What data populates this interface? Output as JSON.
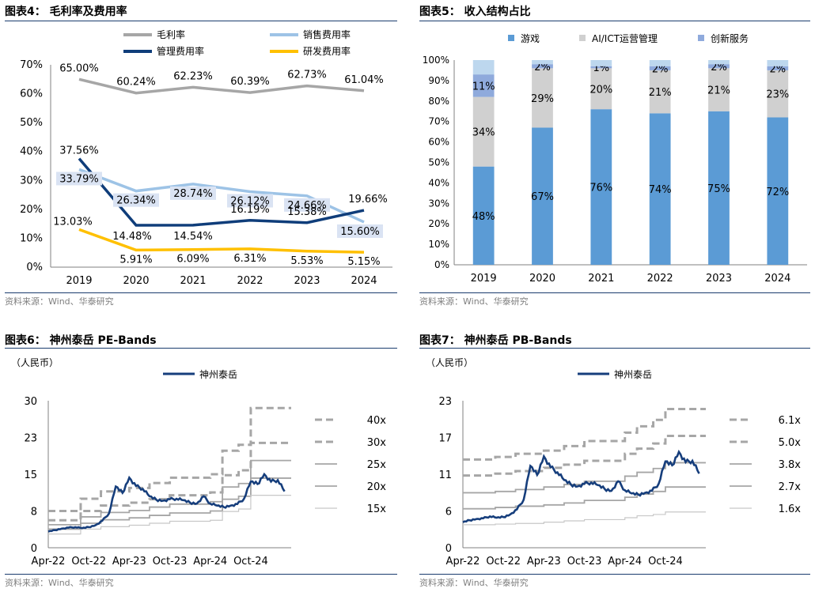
{
  "panels": {
    "p4": {
      "title": "图表4：  毛利率及费用率",
      "source": "资料来源：Wind、华泰研究"
    },
    "p5": {
      "title": "图表5：  收入结构占比",
      "source": "资料来源：Wind、华泰研究"
    },
    "p6": {
      "title": "图表6：  神州泰岳 PE-Bands",
      "source": "资料来源：Wind、华泰研究",
      "unit": "（人民币）"
    },
    "p7": {
      "title": "图表7：  神州泰岳 PB-Bands",
      "source": "资料来源：Wind、华泰研究",
      "unit": "（人民币）"
    }
  },
  "chart_data": [
    {
      "id": "margins",
      "type": "line",
      "categories": [
        "2019",
        "2020",
        "2021",
        "2022",
        "2023",
        "2024"
      ],
      "ylim": [
        0,
        70
      ],
      "yticks": [
        "0%",
        "10%",
        "20%",
        "30%",
        "40%",
        "50%",
        "60%",
        "70%"
      ],
      "legend_position": "top",
      "series": [
        {
          "name": "毛利率",
          "color": "#a6a6a6",
          "values": [
            65.0,
            60.24,
            62.23,
            60.39,
            62.73,
            61.04
          ],
          "labels": [
            "65.00%",
            "60.24%",
            "62.23%",
            "60.39%",
            "62.73%",
            "61.04%"
          ]
        },
        {
          "name": "销售费用率",
          "color": "#9dc3e6",
          "values": [
            33.79,
            26.34,
            28.74,
            26.12,
            24.66,
            15.6
          ],
          "labels": [
            "33.79%",
            "26.34%",
            "28.74%",
            "26.12%",
            "24.66%",
            "15.60%"
          ]
        },
        {
          "name": "管理费用率",
          "color": "#0f3d7a",
          "values": [
            37.56,
            14.48,
            14.54,
            16.19,
            15.38,
            19.66
          ],
          "labels": [
            "37.56%",
            "14.48%",
            "14.54%",
            "16.19%",
            "15.38%",
            "19.66%"
          ]
        },
        {
          "name": "研发费用率",
          "color": "#ffc000",
          "values": [
            13.03,
            5.91,
            6.09,
            6.31,
            5.53,
            5.15
          ],
          "labels": [
            "13.03%",
            "5.91%",
            "6.09%",
            "6.31%",
            "5.53%",
            "5.15%"
          ]
        }
      ]
    },
    {
      "id": "revenue_mix",
      "type": "bar",
      "stacked": true,
      "categories": [
        "2019",
        "2020",
        "2021",
        "2022",
        "2023",
        "2024"
      ],
      "ylim": [
        0,
        100
      ],
      "yticks": [
        "0%",
        "10%",
        "20%",
        "30%",
        "40%",
        "50%",
        "60%",
        "70%",
        "80%",
        "90%",
        "100%"
      ],
      "legend_position": "top",
      "series": [
        {
          "name": "游戏",
          "color": "#5b9bd5",
          "values": [
            48,
            67,
            76,
            74,
            75,
            72
          ],
          "labels": [
            "48%",
            "67%",
            "76%",
            "74%",
            "75%",
            "72%"
          ]
        },
        {
          "name": "AI/ICT运营管理",
          "color": "#d0d0d0",
          "values": [
            34,
            29,
            20,
            21,
            21,
            23
          ],
          "labels": [
            "34%",
            "29%",
            "20%",
            "21%",
            "21%",
            "23%"
          ]
        },
        {
          "name": "创新服务",
          "color": "#8faadc",
          "values": [
            11,
            2,
            1,
            2,
            2,
            2
          ],
          "labels": [
            "11%",
            "2%",
            "1%",
            "2%",
            "2%",
            "2%"
          ]
        },
        {
          "name": "",
          "color": "#bdd7ee",
          "values": [
            7,
            2,
            3,
            3,
            2,
            3
          ],
          "labels": [
            "",
            "",
            "",
            "",
            "",
            ""
          ]
        }
      ]
    },
    {
      "id": "pe_bands",
      "type": "line",
      "xlim": [
        "2022-04-01",
        "2025-03-31"
      ],
      "xticks": [
        {
          "label": "Apr-22",
          "date": "2022-04-01"
        },
        {
          "label": "Oct-22",
          "date": "2022-10-01"
        },
        {
          "label": "Apr-23",
          "date": "2023-04-01"
        },
        {
          "label": "Oct-23",
          "date": "2023-10-01"
        },
        {
          "label": "Apr-24",
          "date": "2024-04-01"
        },
        {
          "label": "Oct-24",
          "date": "2024-10-01"
        }
      ],
      "ylim": [
        0,
        30
      ],
      "yticks": [
        "0",
        "8",
        "15",
        "23",
        "30"
      ],
      "ytick_values": [
        0,
        7.5,
        15,
        22.5,
        30
      ],
      "legend_position": "top-left",
      "price": {
        "name": "神州泰岳",
        "color": "#163e7c",
        "points": [
          [
            "2022-04-01",
            3.3
          ],
          [
            "2022-05-01",
            3.6
          ],
          [
            "2022-06-01",
            3.9
          ],
          [
            "2022-07-01",
            4.1
          ],
          [
            "2022-08-01",
            4.2
          ],
          [
            "2022-09-01",
            4.0
          ],
          [
            "2022-10-01",
            4.2
          ],
          [
            "2022-11-01",
            4.6
          ],
          [
            "2022-12-01",
            5.5
          ],
          [
            "2023-01-01",
            7.0
          ],
          [
            "2023-02-01",
            12.5
          ],
          [
            "2023-03-01",
            11.2
          ],
          [
            "2023-04-01",
            14.3
          ],
          [
            "2023-05-01",
            12.6
          ],
          [
            "2023-06-01",
            12.0
          ],
          [
            "2023-07-01",
            10.5
          ],
          [
            "2023-08-01",
            9.8
          ],
          [
            "2023-09-01",
            9.6
          ],
          [
            "2023-10-01",
            9.9
          ],
          [
            "2023-11-01",
            10.0
          ],
          [
            "2023-12-01",
            9.7
          ],
          [
            "2024-01-01",
            9.2
          ],
          [
            "2024-02-01",
            9.0
          ],
          [
            "2024-03-01",
            10.5
          ],
          [
            "2024-04-01",
            9.0
          ],
          [
            "2024-05-01",
            8.6
          ],
          [
            "2024-06-01",
            8.3
          ],
          [
            "2024-07-01",
            8.6
          ],
          [
            "2024-08-01",
            8.9
          ],
          [
            "2024-09-01",
            10.0
          ],
          [
            "2024-10-01",
            13.5
          ],
          [
            "2024-11-01",
            13.0
          ],
          [
            "2024-12-01",
            15.0
          ],
          [
            "2025-01-01",
            13.5
          ],
          [
            "2025-02-01",
            13.8
          ],
          [
            "2025-03-01",
            11.5
          ]
        ]
      },
      "bands": [
        {
          "name": "40x",
          "style": "dashed",
          "color": "#a6a6a6",
          "levels": [
            [
              2022.25,
              7.5
            ],
            [
              2022.65,
              10.0
            ],
            [
              2022.9,
              11.5
            ],
            [
              2023.25,
              12.2
            ],
            [
              2023.5,
              13.2
            ],
            [
              2023.75,
              14.3
            ],
            [
              2024.25,
              15.0
            ],
            [
              2024.4,
              19.8
            ],
            [
              2024.6,
              21.0
            ],
            [
              2024.75,
              28.5
            ]
          ]
        },
        {
          "name": "30x",
          "style": "dashed",
          "color": "#a6a6a6",
          "levels": [
            [
              2022.25,
              5.6
            ],
            [
              2022.65,
              7.5
            ],
            [
              2022.9,
              8.6
            ],
            [
              2023.25,
              9.2
            ],
            [
              2023.5,
              9.9
            ],
            [
              2023.75,
              10.7
            ],
            [
              2024.25,
              11.3
            ],
            [
              2024.4,
              14.8
            ],
            [
              2024.6,
              15.8
            ],
            [
              2024.75,
              21.4
            ]
          ]
        },
        {
          "name": "25x",
          "style": "solid",
          "color": "#a6a6a6",
          "levels": [
            [
              2022.25,
              4.7
            ],
            [
              2022.65,
              6.3
            ],
            [
              2022.9,
              7.2
            ],
            [
              2023.25,
              7.6
            ],
            [
              2023.5,
              8.3
            ],
            [
              2023.75,
              8.9
            ],
            [
              2024.25,
              9.4
            ],
            [
              2024.4,
              12.4
            ],
            [
              2024.6,
              13.1
            ],
            [
              2024.75,
              17.8
            ]
          ]
        },
        {
          "name": "20x",
          "style": "solid",
          "color": "#a6a6a6",
          "levels": [
            [
              2022.25,
              3.8
            ],
            [
              2022.65,
              5.0
            ],
            [
              2022.9,
              5.7
            ],
            [
              2023.25,
              6.1
            ],
            [
              2023.5,
              6.6
            ],
            [
              2023.75,
              7.1
            ],
            [
              2024.25,
              7.5
            ],
            [
              2024.4,
              9.9
            ],
            [
              2024.6,
              10.5
            ],
            [
              2024.75,
              14.2
            ]
          ]
        },
        {
          "name": "15x",
          "style": "solid",
          "color": "#c8c8c8",
          "levels": [
            [
              2022.25,
              2.8
            ],
            [
              2022.65,
              3.8
            ],
            [
              2022.9,
              4.3
            ],
            [
              2023.25,
              4.6
            ],
            [
              2023.5,
              5.0
            ],
            [
              2023.75,
              5.4
            ],
            [
              2024.25,
              5.6
            ],
            [
              2024.4,
              7.4
            ],
            [
              2024.6,
              7.9
            ],
            [
              2024.75,
              10.7
            ]
          ]
        }
      ]
    },
    {
      "id": "pb_bands",
      "type": "line",
      "xlim": [
        "2022-04-01",
        "2025-03-31"
      ],
      "xticks": [
        {
          "label": "Apr-22",
          "date": "2022-04-01"
        },
        {
          "label": "Oct-22",
          "date": "2022-10-01"
        },
        {
          "label": "Apr-23",
          "date": "2023-04-01"
        },
        {
          "label": "Oct-23",
          "date": "2023-10-01"
        },
        {
          "label": "Apr-24",
          "date": "2024-04-01"
        },
        {
          "label": "Oct-24",
          "date": "2024-10-01"
        }
      ],
      "ylim": [
        0,
        23
      ],
      "yticks": [
        "0",
        "6",
        "11",
        "17",
        "23"
      ],
      "ytick_values": [
        0,
        5.75,
        11.5,
        17.25,
        23
      ],
      "legend_position": "top-left",
      "price": {
        "name": "神州泰岳",
        "color": "#163e7c",
        "points": [
          [
            "2022-04-01",
            4.0
          ],
          [
            "2022-05-01",
            4.3
          ],
          [
            "2022-06-01",
            4.5
          ],
          [
            "2022-07-01",
            4.6
          ],
          [
            "2022-08-01",
            4.9
          ],
          [
            "2022-09-01",
            4.7
          ],
          [
            "2022-10-01",
            4.8
          ],
          [
            "2022-11-01",
            5.2
          ],
          [
            "2022-12-01",
            6.0
          ],
          [
            "2023-01-01",
            7.5
          ],
          [
            "2023-02-01",
            12.8
          ],
          [
            "2023-03-01",
            11.4
          ],
          [
            "2023-04-01",
            14.3
          ],
          [
            "2023-05-01",
            12.6
          ],
          [
            "2023-06-01",
            11.8
          ],
          [
            "2023-07-01",
            10.6
          ],
          [
            "2023-08-01",
            9.9
          ],
          [
            "2023-09-01",
            9.6
          ],
          [
            "2023-10-01",
            10.0
          ],
          [
            "2023-11-01",
            10.2
          ],
          [
            "2023-12-01",
            9.8
          ],
          [
            "2024-01-01",
            9.2
          ],
          [
            "2024-02-01",
            8.9
          ],
          [
            "2024-03-01",
            10.4
          ],
          [
            "2024-04-01",
            9.0
          ],
          [
            "2024-05-01",
            8.5
          ],
          [
            "2024-06-01",
            8.3
          ],
          [
            "2024-07-01",
            8.6
          ],
          [
            "2024-08-01",
            8.9
          ],
          [
            "2024-09-01",
            10.0
          ],
          [
            "2024-10-01",
            13.5
          ],
          [
            "2024-11-01",
            12.9
          ],
          [
            "2024-12-01",
            15.0
          ],
          [
            "2025-01-01",
            13.4
          ],
          [
            "2025-02-01",
            13.6
          ],
          [
            "2025-03-01",
            11.6
          ]
        ]
      },
      "bands": [
        {
          "name": "6.1x",
          "style": "dashed",
          "color": "#a6a6a6",
          "levels": [
            [
              2022.25,
              13.8
            ],
            [
              2022.65,
              14.2
            ],
            [
              2022.9,
              14.7
            ],
            [
              2023.25,
              15.2
            ],
            [
              2023.5,
              15.9
            ],
            [
              2023.75,
              16.7
            ],
            [
              2024.25,
              18.0
            ],
            [
              2024.4,
              19.0
            ],
            [
              2024.6,
              20.0
            ],
            [
              2024.75,
              21.7
            ]
          ]
        },
        {
          "name": "5.0x",
          "style": "dashed",
          "color": "#a6a6a6",
          "levels": [
            [
              2022.25,
              11.3
            ],
            [
              2022.65,
              11.6
            ],
            [
              2022.9,
              12.0
            ],
            [
              2023.25,
              12.5
            ],
            [
              2023.5,
              13.0
            ],
            [
              2023.75,
              13.6
            ],
            [
              2024.25,
              14.7
            ],
            [
              2024.4,
              15.5
            ],
            [
              2024.6,
              16.3
            ],
            [
              2024.75,
              17.5
            ]
          ]
        },
        {
          "name": "3.8x",
          "style": "solid",
          "color": "#a6a6a6",
          "levels": [
            [
              2022.25,
              8.6
            ],
            [
              2022.65,
              8.8
            ],
            [
              2022.9,
              9.1
            ],
            [
              2023.25,
              9.5
            ],
            [
              2023.5,
              9.9
            ],
            [
              2023.75,
              10.4
            ],
            [
              2024.25,
              11.2
            ],
            [
              2024.4,
              11.8
            ],
            [
              2024.6,
              12.4
            ],
            [
              2024.75,
              13.3
            ]
          ]
        },
        {
          "name": "2.7x",
          "style": "solid",
          "color": "#a6a6a6",
          "levels": [
            [
              2022.25,
              6.1
            ],
            [
              2022.65,
              6.3
            ],
            [
              2022.9,
              6.5
            ],
            [
              2023.25,
              6.7
            ],
            [
              2023.5,
              7.0
            ],
            [
              2023.75,
              7.4
            ],
            [
              2024.25,
              7.9
            ],
            [
              2024.4,
              8.4
            ],
            [
              2024.6,
              8.8
            ],
            [
              2024.75,
              9.5
            ]
          ]
        },
        {
          "name": "1.6x",
          "style": "solid",
          "color": "#c8c8c8",
          "levels": [
            [
              2022.25,
              3.6
            ],
            [
              2022.65,
              3.7
            ],
            [
              2022.9,
              3.8
            ],
            [
              2023.25,
              4.0
            ],
            [
              2023.5,
              4.2
            ],
            [
              2023.75,
              4.4
            ],
            [
              2024.25,
              4.7
            ],
            [
              2024.4,
              5.0
            ],
            [
              2024.6,
              5.2
            ],
            [
              2024.75,
              5.6
            ]
          ]
        }
      ]
    }
  ]
}
